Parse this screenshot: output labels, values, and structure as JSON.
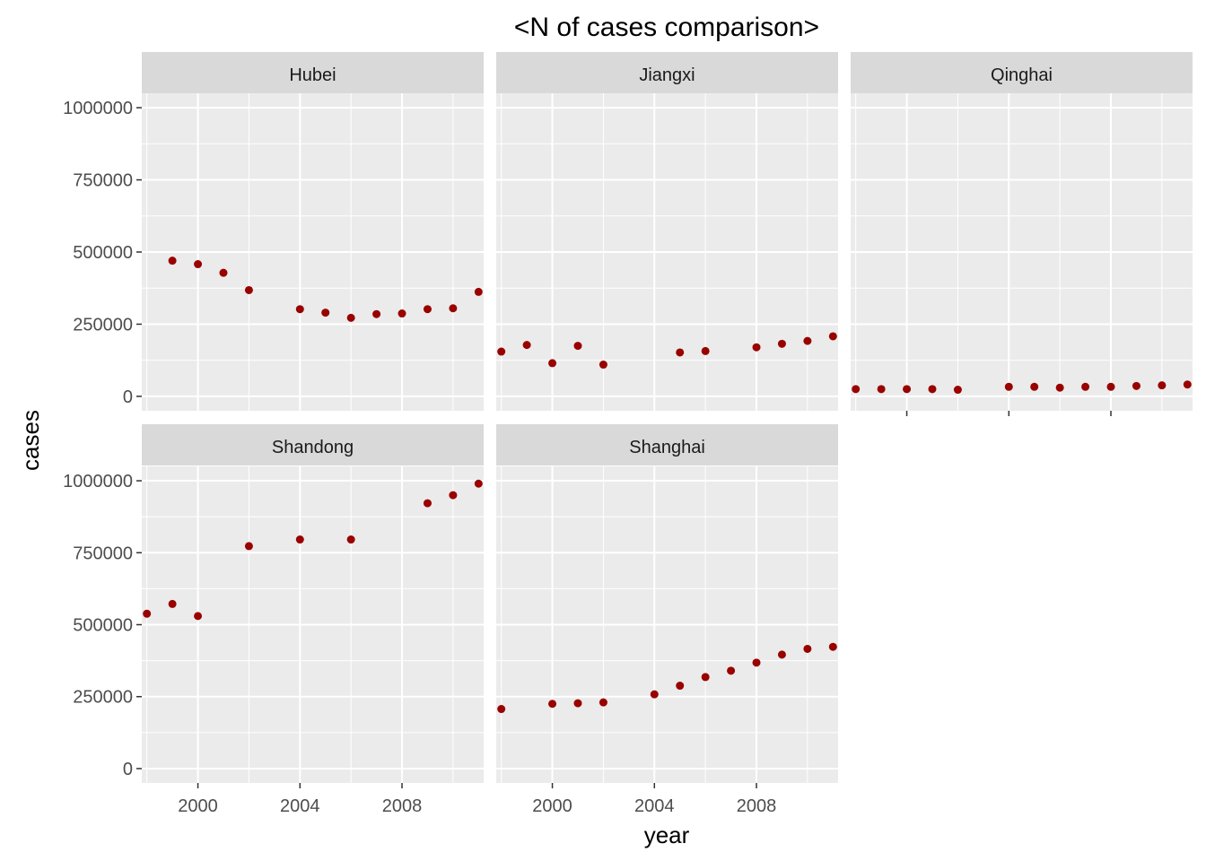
{
  "chart_data": {
    "type": "scatter",
    "title": "<N of cases comparison>",
    "xlabel": "year",
    "ylabel": "cases",
    "xlim": [
      1997.8,
      2011.2
    ],
    "ylim": [
      -50000,
      1050000
    ],
    "x_ticks": [
      2000,
      2004,
      2008
    ],
    "x_tick_labels": [
      "2000",
      "2004",
      "2008"
    ],
    "y_ticks": [
      0,
      250000,
      500000,
      750000,
      1000000
    ],
    "y_tick_labels": [
      "0",
      "250000",
      "500000",
      "750000",
      "1000000"
    ],
    "grid": true,
    "colors": {
      "point": "#990000",
      "panel_bg": "#ebebeb",
      "strip_bg": "#d9d9d9",
      "grid": "#ffffff"
    },
    "panels": [
      {
        "name": "Hubei",
        "x": [
          1999,
          2000,
          2001,
          2002,
          2004,
          2005,
          2006,
          2007,
          2008,
          2009,
          2010,
          2011
        ],
        "values": [
          470000,
          458000,
          428000,
          368000,
          302000,
          290000,
          272000,
          285000,
          287000,
          302000,
          305000,
          362000
        ]
      },
      {
        "name": "Jiangxi",
        "x": [
          1998,
          1999,
          2000,
          2001,
          2002,
          2005,
          2006,
          2008,
          2009,
          2010,
          2011
        ],
        "values": [
          155000,
          178000,
          115000,
          175000,
          110000,
          152000,
          157000,
          170000,
          182000,
          192000,
          208000
        ]
      },
      {
        "name": "Qinghai",
        "x": [
          1998,
          1999,
          2000,
          2001,
          2002,
          2004,
          2005,
          2006,
          2007,
          2008,
          2009,
          2010,
          2011
        ],
        "values": [
          25000,
          25000,
          25000,
          25000,
          23000,
          33000,
          33000,
          30000,
          33000,
          33000,
          36000,
          38000,
          41000
        ]
      },
      {
        "name": "Shandong",
        "x": [
          1998,
          1999,
          2000,
          2002,
          2004,
          2006,
          2009,
          2010,
          2011
        ],
        "values": [
          538000,
          572000,
          530000,
          773000,
          796000,
          796000,
          922000,
          950000,
          990000
        ]
      },
      {
        "name": "Shanghai",
        "x": [
          1998,
          2000,
          2001,
          2002,
          2004,
          2005,
          2006,
          2007,
          2008,
          2009,
          2010,
          2011
        ],
        "values": [
          207000,
          225000,
          227000,
          230000,
          258000,
          288000,
          318000,
          340000,
          368000,
          396000,
          416000,
          423000
        ]
      }
    ]
  }
}
